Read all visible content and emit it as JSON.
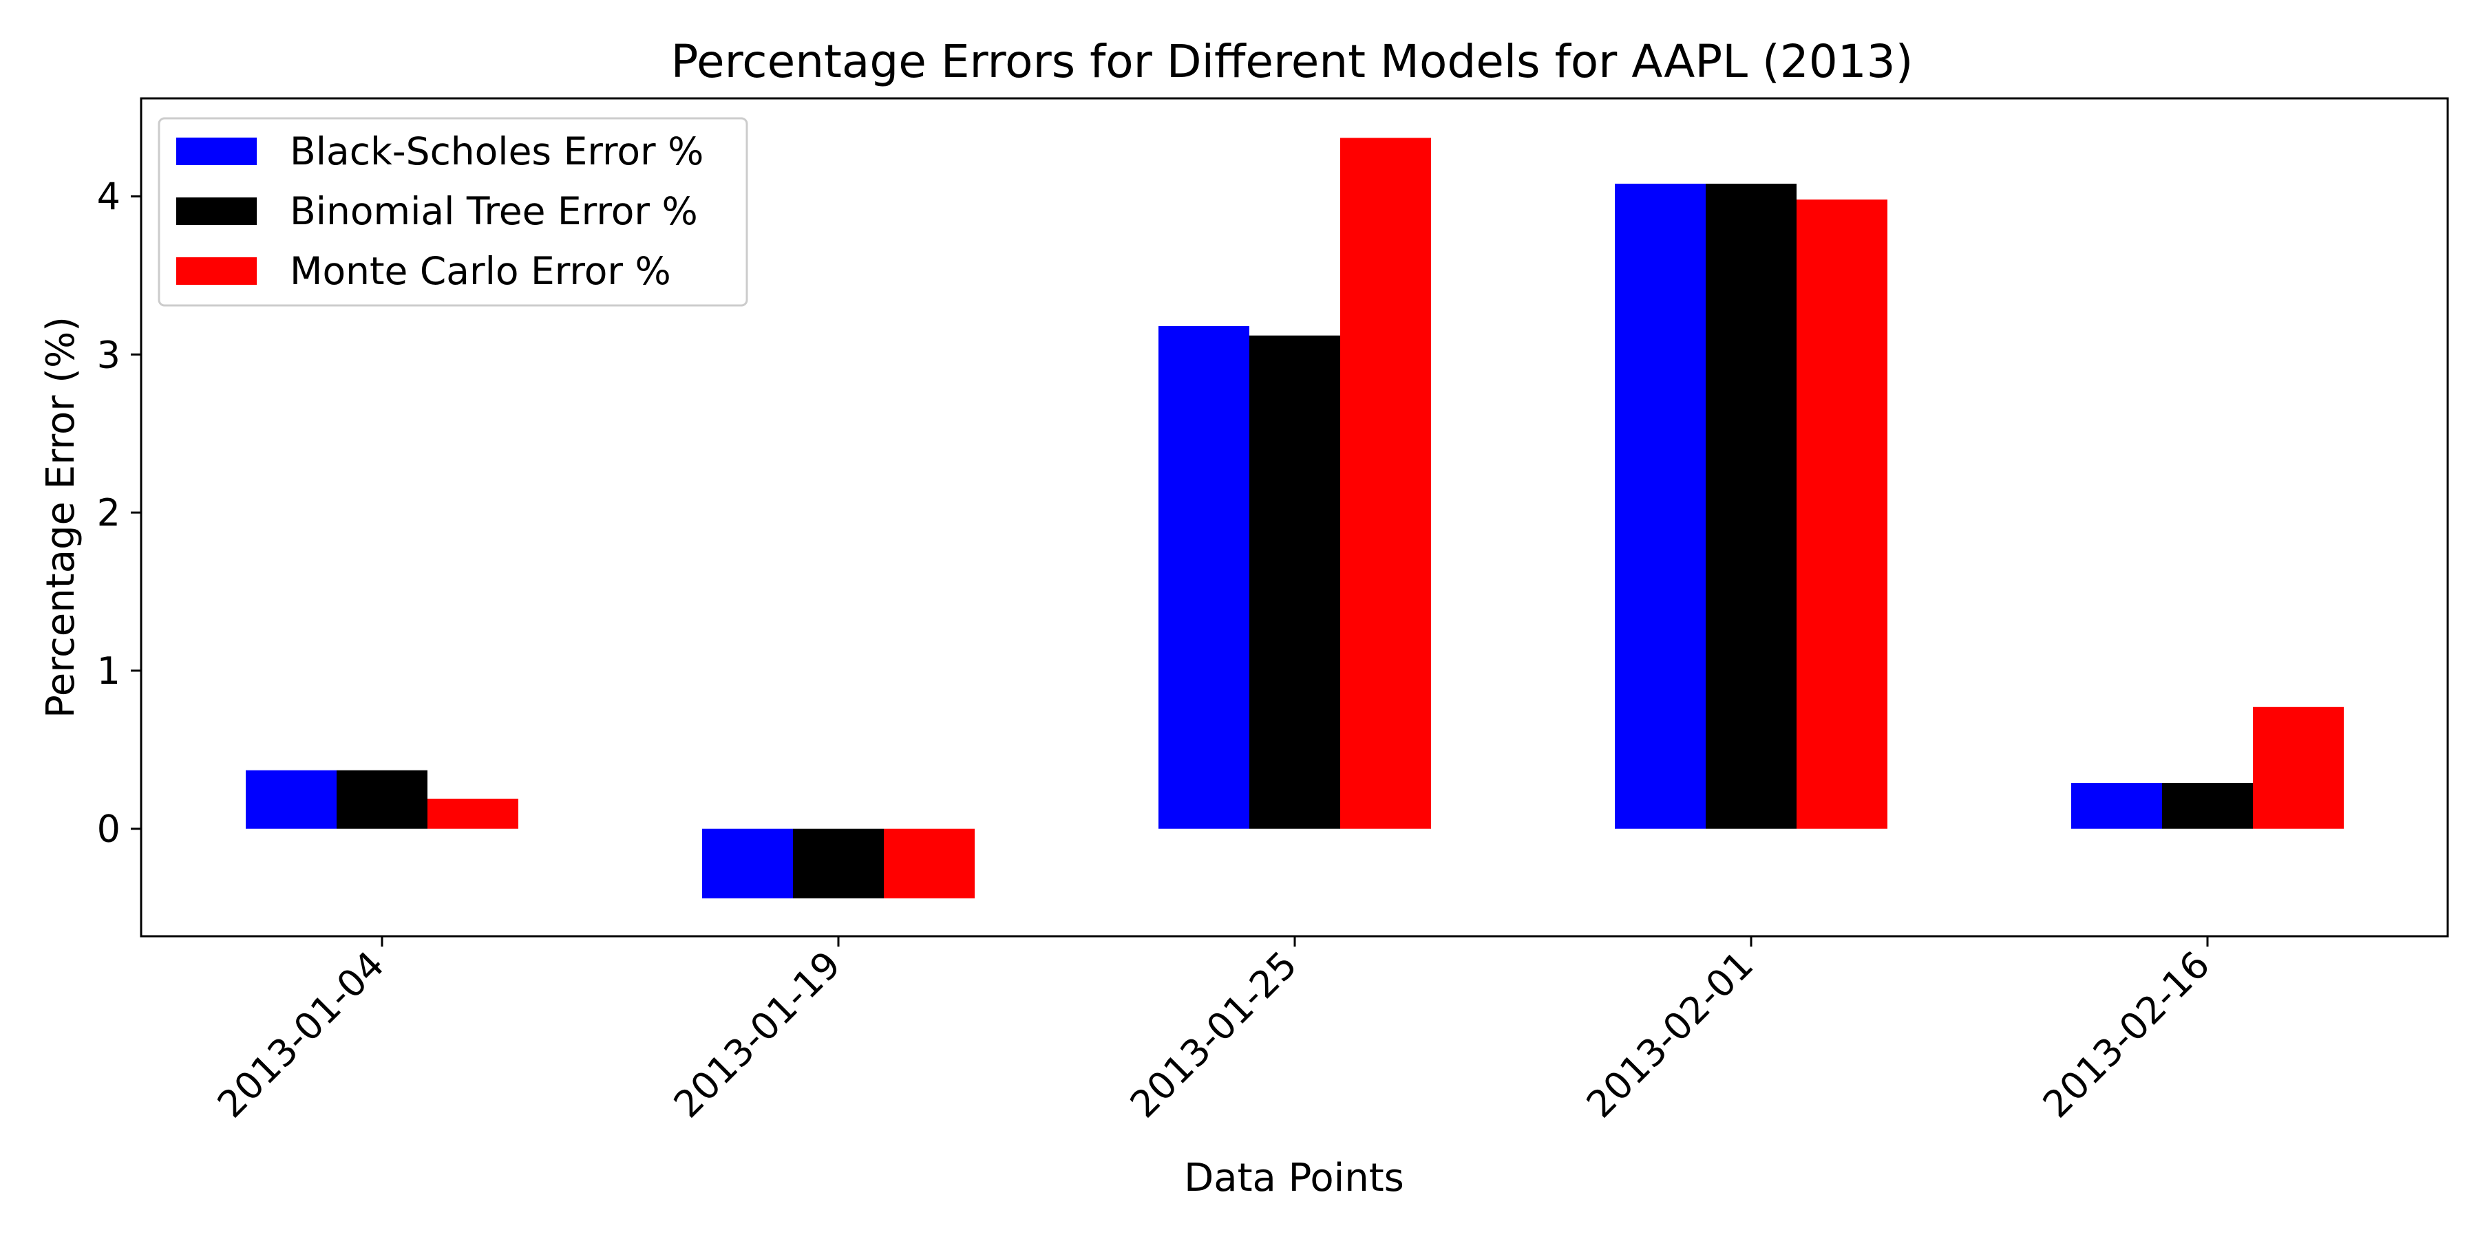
{
  "chart_data": {
    "type": "bar",
    "title": "Percentage Errors for Different Models for AAPL (2013)",
    "xlabel": "Data Points",
    "ylabel": "Percentage Error (%)",
    "categories": [
      "2013-01-04",
      "2013-01-19",
      "2013-01-25",
      "2013-02-01",
      "2013-02-16"
    ],
    "series": [
      {
        "name": "Black-Scholes Error %",
        "color": "#0000ff",
        "values": [
          0.37,
          -0.44,
          3.18,
          4.08,
          0.29
        ]
      },
      {
        "name": "Binomial Tree Error %",
        "color": "#000000",
        "values": [
          0.37,
          -0.44,
          3.12,
          4.08,
          0.29
        ]
      },
      {
        "name": "Monte Carlo Error %",
        "color": "#ff0000",
        "values": [
          0.19,
          -0.44,
          4.37,
          3.98,
          0.77
        ]
      }
    ],
    "ylim": [
      -0.68,
      4.62
    ],
    "yticks": [
      0,
      1,
      2,
      3,
      4
    ],
    "xtick_rotation_deg": 45,
    "grid": false,
    "legend_position": "top-left"
  }
}
